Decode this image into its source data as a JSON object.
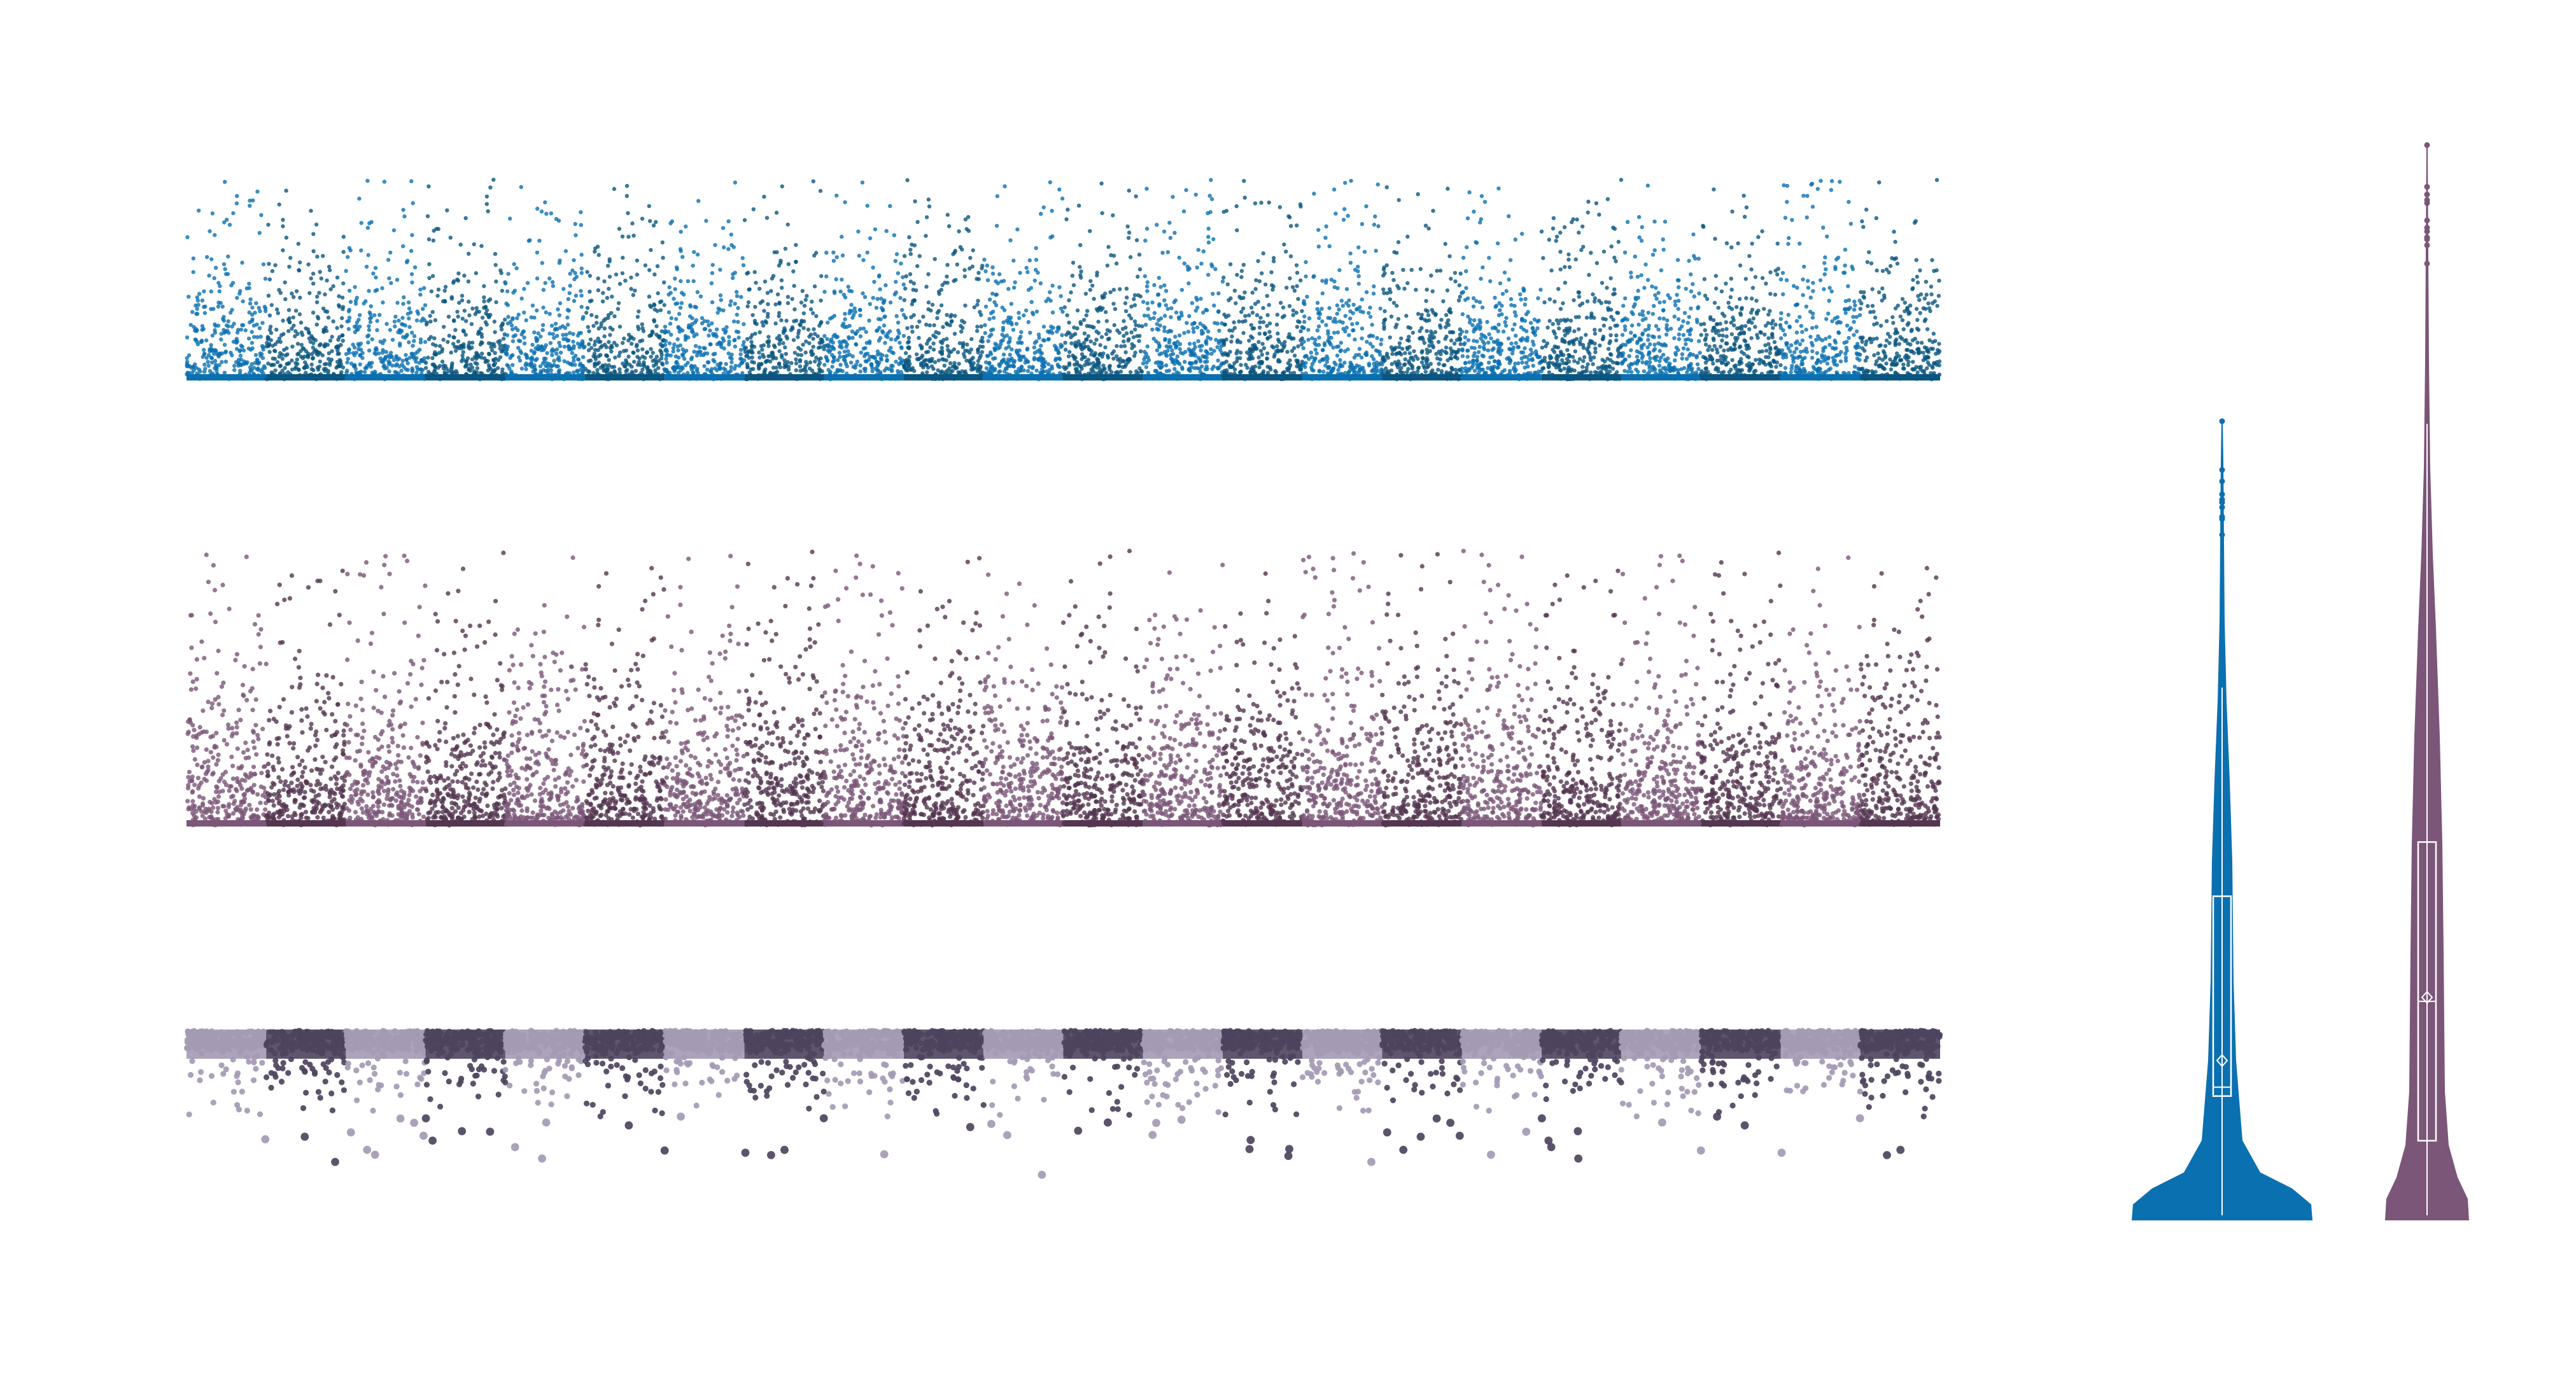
{
  "colors": {
    "panel1": [
      "#0b70b0",
      "#0a5680"
    ],
    "panel2": [
      "#7b5678",
      "#543650"
    ],
    "panel3": [
      "#a49ab4",
      "#4e445e"
    ],
    "violin_left": "#0b70b0",
    "violin_right": "#7b5678"
  },
  "chart_data": [
    {
      "type": "scatter",
      "title": "",
      "xlabel": "",
      "ylabel": "",
      "grid": false,
      "legend": "none",
      "description_key": "manhattan-top",
      "xlim": [
        0,
        22
      ],
      "ylim": [
        0,
        12
      ],
      "segments": 22,
      "points_per_segment": 300,
      "baseline_value": 0,
      "typical_max": 8,
      "max_value": 11.8,
      "direction": "up"
    },
    {
      "type": "scatter",
      "title": "",
      "xlabel": "",
      "ylabel": "",
      "grid": false,
      "legend": "none",
      "description_key": "manhattan-middle",
      "xlim": [
        0,
        22
      ],
      "ylim": [
        0,
        16
      ],
      "segments": 22,
      "points_per_segment": 320,
      "baseline_value": 0,
      "typical_max": 10,
      "max_value": 15.5,
      "direction": "up"
    },
    {
      "type": "scatter",
      "title": "",
      "xlabel": "",
      "ylabel": "",
      "grid": false,
      "legend": "none",
      "description_key": "manhattan-bottom",
      "xlim": [
        0,
        22
      ],
      "ylim": [
        -10,
        2
      ],
      "segments": 22,
      "points_per_segment": 220,
      "baseline_value": 0,
      "typical_max": -4,
      "max_value": -9.5,
      "direction": "down"
    },
    {
      "type": "violin",
      "title": "",
      "xlabel": "",
      "ylabel": "",
      "grid": false,
      "legend": "none",
      "violins": [
        {
          "min": 0,
          "q1": 2.8,
          "median": 3.0,
          "mean": 3.6,
          "q3": 7.3,
          "whisker_high": 12,
          "max": 18
        },
        {
          "min": 0,
          "q1": 2.0,
          "median": 5.5,
          "mean": 5.6,
          "q3": 9.5,
          "whisker_high": 20,
          "max": 27
        }
      ],
      "ylim": [
        0,
        28
      ]
    }
  ]
}
